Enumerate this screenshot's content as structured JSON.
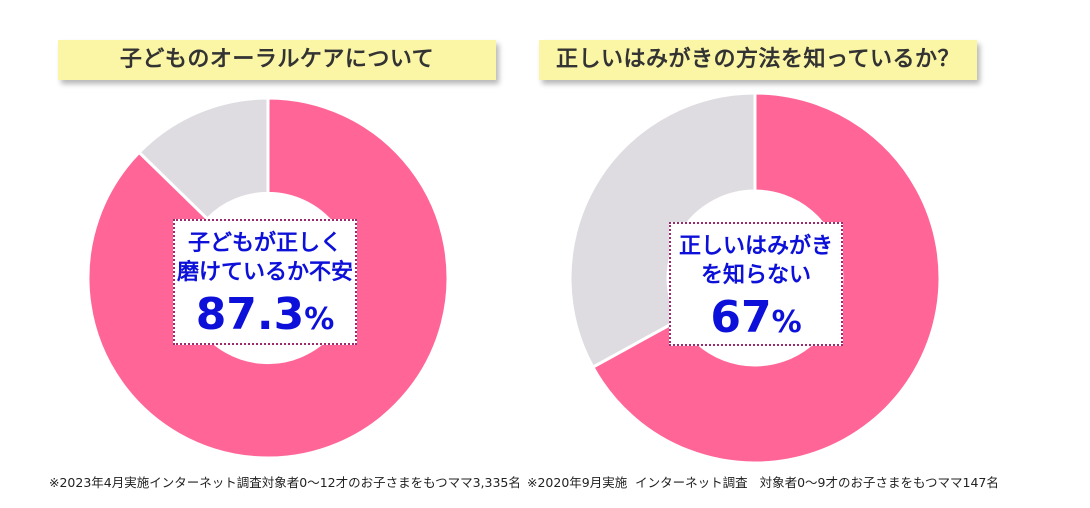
{
  "colors": {
    "accent": "#ff6597",
    "rest": "#dedce1",
    "callout_text": "#0c10d8",
    "banner_bg": "#fbf6a6"
  },
  "chart_data": [
    {
      "type": "pie",
      "title": "子どものオーラルケアについて",
      "slices": [
        {
          "label": "子どもが正しく磨けているか不安",
          "value": 87.3
        },
        {
          "label": "",
          "value": 12.7
        }
      ],
      "callout": {
        "line1": "子どもが正しく",
        "line2": "磨けているか不安",
        "value": "87.3",
        "unit": "%"
      },
      "note": "※2023年4月実施インターネット調査対象者0～12才のお子さまをもつママ3,335名"
    },
    {
      "type": "pie",
      "title": "正しいはみがきの方法を知っているか？",
      "slices": [
        {
          "label": "正しいはみがきを知らない",
          "value": 67
        },
        {
          "label": "",
          "value": 33
        }
      ],
      "callout": {
        "line1": "正しいはみがき",
        "line2": "を知らない",
        "value": "67",
        "unit": "%"
      },
      "note": "※2020年9月実施  インターネット調査   対象者0～9才のお子さまをもつママ147名"
    }
  ]
}
